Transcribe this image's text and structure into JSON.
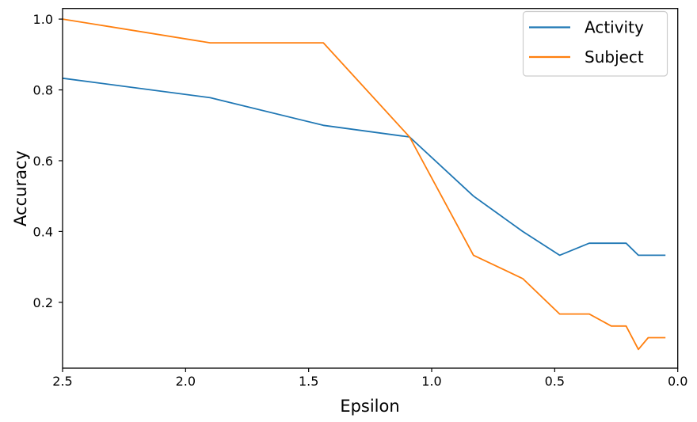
{
  "chart_data": {
    "type": "line",
    "title": "",
    "xlabel": "Epsilon",
    "ylabel": "Accuracy",
    "x_axis_reversed": true,
    "xlim": [
      2.5,
      0.0
    ],
    "ylim": [
      0.014,
      1.03
    ],
    "grid": false,
    "legend_position": "upper right",
    "x_ticks": [
      2.5,
      2.0,
      1.5,
      1.0,
      0.5,
      0.0
    ],
    "x_tick_labels": [
      "2.5",
      "2.0",
      "1.5",
      "1.0",
      "0.5",
      "0.0"
    ],
    "y_ticks": [
      0.2,
      0.4,
      0.6,
      0.8,
      1.0
    ],
    "y_tick_labels": [
      "0.2",
      "0.4",
      "0.6",
      "0.8",
      "1.0"
    ],
    "x": [
      2.5,
      1.9,
      1.44,
      1.09,
      0.83,
      0.63,
      0.48,
      0.36,
      0.27,
      0.21,
      0.16,
      0.12,
      0.09,
      0.07,
      0.05
    ],
    "series": [
      {
        "name": "Activity",
        "color": "#1f77b4",
        "values": [
          0.833,
          0.778,
          0.7,
          0.667,
          0.5,
          0.4,
          0.333,
          0.367,
          0.367,
          0.367,
          0.333,
          0.333,
          0.333,
          0.333,
          0.333
        ]
      },
      {
        "name": "Subject",
        "color": "#ff7f0e",
        "values": [
          1.0,
          0.933,
          0.933,
          0.667,
          0.333,
          0.267,
          0.167,
          0.167,
          0.133,
          0.133,
          0.067,
          0.1,
          0.1,
          0.1,
          0.1
        ]
      }
    ],
    "colors": {
      "text": "#000000",
      "spines": "#000000",
      "legend_border": "#cccccc",
      "background": "#ffffff"
    }
  }
}
